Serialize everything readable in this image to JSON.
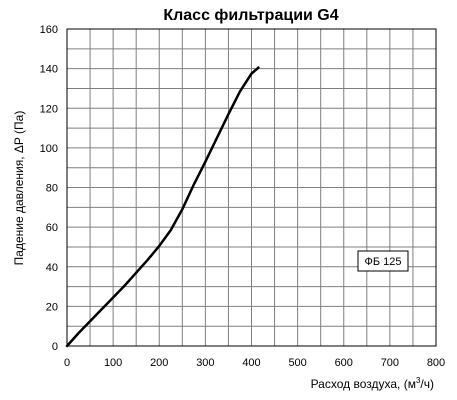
{
  "chart_data": {
    "type": "line",
    "title": "Класс фильтрации G4",
    "xlabel_main": "Расход воздуха, (м",
    "xlabel_sup": "3",
    "xlabel_end": "/ч)",
    "ylabel": "Падение давления, ΔP (Па)",
    "xlim": [
      0,
      800
    ],
    "ylim": [
      0,
      160
    ],
    "x_ticks": [
      "0",
      "100",
      "200",
      "300",
      "400",
      "500",
      "600",
      "700",
      "800"
    ],
    "y_ticks": [
      "0",
      "20",
      "40",
      "60",
      "80",
      "100",
      "120",
      "140",
      "160"
    ],
    "x_minor_step": 50,
    "y_minor_step": 10,
    "grid": true,
    "legend_position": "right",
    "line_color": "#000000",
    "grid_color": "#7f7f7f",
    "series": [
      {
        "name": "ФБ 125",
        "x": [
          0,
          25,
          50,
          75,
          100,
          125,
          150,
          175,
          200,
          225,
          250,
          275,
          300,
          325,
          350,
          375,
          400,
          415
        ],
        "y": [
          0,
          6.5,
          12.5,
          18.5,
          24.5,
          30.5,
          37,
          43.5,
          50.5,
          58.5,
          69,
          81.5,
          93,
          105,
          117,
          128.5,
          137.5,
          140.5
        ]
      }
    ]
  }
}
